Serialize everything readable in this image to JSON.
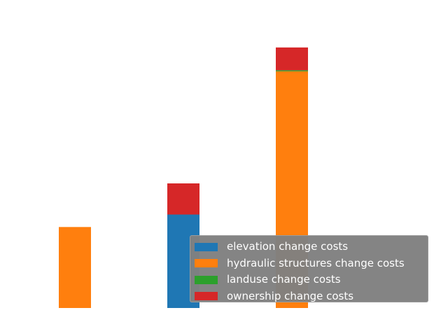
{
  "chart_data": {
    "type": "bar",
    "stacked": true,
    "categories": [
      "",
      "",
      ""
    ],
    "series": [
      {
        "name": "elevation change costs",
        "color": "#1f77b4",
        "values": [
          0,
          0.9,
          0
        ]
      },
      {
        "name": "hydraulic structures change costs",
        "color": "#ff7f0e",
        "values": [
          0.78,
          0,
          2.28
        ]
      },
      {
        "name": "landuse change costs",
        "color": "#2ca02c",
        "values": [
          0,
          0,
          0.01
        ]
      },
      {
        "name": "ownership change costs",
        "color": "#d62728",
        "values": [
          0,
          0.3,
          0.22
        ]
      }
    ],
    "title": "",
    "xlabel": "",
    "ylabel": "",
    "ylim": [
      0,
      2.65
    ],
    "axes_visible": false,
    "grid": false,
    "legend": "lower-right"
  }
}
